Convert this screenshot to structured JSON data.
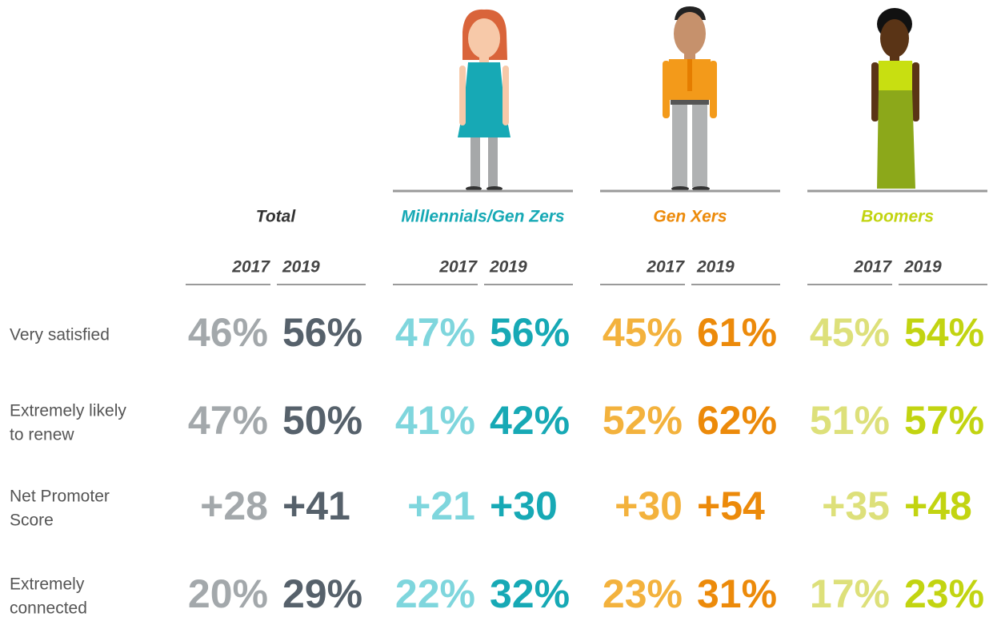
{
  "groups": [
    {
      "name": "Total",
      "years": [
        "2017",
        "2019"
      ],
      "name_color": "#333333",
      "colors": [
        "#a3a8ab",
        "#56616b"
      ]
    },
    {
      "name": "Millennials/Gen Zers",
      "years": [
        "2017",
        "2019"
      ],
      "name_color": "#17a9b5",
      "colors": [
        "#7fd6dd",
        "#17a9b5"
      ]
    },
    {
      "name": "Gen Xers",
      "years": [
        "2017",
        "2019"
      ],
      "name_color": "#ec8a0a",
      "colors": [
        "#f3b23d",
        "#ec8a0a"
      ]
    },
    {
      "name": "Boomers",
      "years": [
        "2017",
        "2019"
      ],
      "name_color": "#c2d411",
      "colors": [
        "#dde07a",
        "#c2d411"
      ]
    }
  ],
  "rows": [
    {
      "label": [
        "Very satisfied"
      ],
      "values": [
        [
          "46%",
          "56%"
        ],
        [
          "47%",
          "56%"
        ],
        [
          "45%",
          "61%"
        ],
        [
          "45%",
          "54%"
        ]
      ]
    },
    {
      "label": [
        "Extremely likely",
        "to renew"
      ],
      "values": [
        [
          "47%",
          "50%"
        ],
        [
          "41%",
          "42%"
        ],
        [
          "52%",
          "62%"
        ],
        [
          "51%",
          "57%"
        ]
      ]
    },
    {
      "label": [
        "Net Promoter",
        "Score"
      ],
      "values": [
        [
          "+28",
          "+41"
        ],
        [
          "+21",
          "+30"
        ],
        [
          "+30",
          "+54"
        ],
        [
          "+35",
          "+48"
        ]
      ]
    },
    {
      "label": [
        "Extremely",
        "connected"
      ],
      "values": [
        [
          "20%",
          "29%"
        ],
        [
          "22%",
          "32%"
        ],
        [
          "23%",
          "31%"
        ],
        [
          "17%",
          "23%"
        ]
      ]
    }
  ]
}
